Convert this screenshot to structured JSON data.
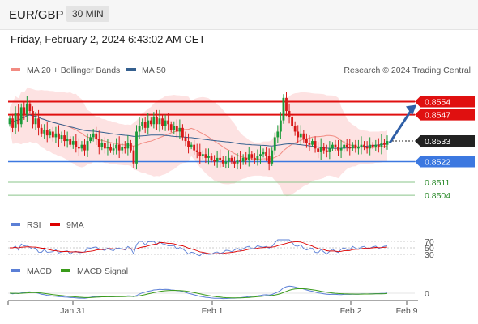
{
  "header": {
    "symbol": "EUR/GBP",
    "timeframe": "30 MIN"
  },
  "date_line": "Friday, February 2, 2024 6:43:02 AM CET",
  "legend_main": [
    {
      "label": "MA 20 + Bollinger Bands",
      "color": "#f28b82"
    },
    {
      "label": "MA 50",
      "color": "#35608f"
    }
  ],
  "credit": "Research © 2024 Trading Central",
  "legend_rsi": [
    {
      "label": "RSI",
      "color": "#5b7fd6"
    },
    {
      "label": "9MA",
      "color": "#dd0000"
    }
  ],
  "legend_macd": [
    {
      "label": "MACD",
      "color": "#5b7fd6"
    },
    {
      "label": "MACD Signal",
      "color": "#3a9b1a"
    }
  ],
  "colors": {
    "up": "#1a9b3a",
    "down": "#d81818",
    "resistance": "#e01010",
    "support": "#3c78e0",
    "target": "#8ac48a",
    "arrow": "#2f5fa7",
    "band": "#fde2e2"
  },
  "chart_data": [
    {
      "type": "candlestick",
      "ylim": [
        0.8495,
        0.8565
      ],
      "x_labels": [
        "Jan 31",
        "Feb 1",
        "Feb 2",
        "Feb 9"
      ],
      "last_price": 0.8533,
      "levels": [
        {
          "value": 0.8554,
          "label": "0.8554",
          "kind": "resistance"
        },
        {
          "value": 0.8547,
          "label": "0.8547",
          "kind": "resistance"
        },
        {
          "value": 0.8533,
          "label": "0.8533",
          "kind": "current"
        },
        {
          "value": 0.8522,
          "label": "0.8522",
          "kind": "support"
        },
        {
          "value": 0.8511,
          "label": "0.8511",
          "kind": "target"
        },
        {
          "value": 0.8504,
          "label": "0.8504",
          "kind": "target"
        }
      ],
      "close": [
        0.8545,
        0.854,
        0.8548,
        0.8542,
        0.8551,
        0.8547,
        0.8553,
        0.8549,
        0.8542,
        0.8545,
        0.854,
        0.8537,
        0.8539,
        0.8536,
        0.8538,
        0.8535,
        0.8537,
        0.8534,
        0.8536,
        0.8533,
        0.8534,
        0.8531,
        0.8533,
        0.853,
        0.8529,
        0.8531,
        0.8528,
        0.8533,
        0.8535,
        0.8537,
        0.8534,
        0.853,
        0.8532,
        0.8529,
        0.853,
        0.8528,
        0.8529,
        0.8531,
        0.8528,
        0.853,
        0.8529,
        0.8532,
        0.8528,
        0.8521,
        0.8538,
        0.8541,
        0.8543,
        0.854,
        0.8544,
        0.8542,
        0.8546,
        0.8542,
        0.8545,
        0.8541,
        0.8544,
        0.8542,
        0.8539,
        0.8541,
        0.8538,
        0.854,
        0.8535,
        0.8533,
        0.853,
        0.8531,
        0.8528,
        0.8527,
        0.8525,
        0.8526,
        0.8524,
        0.8525,
        0.8523,
        0.8522,
        0.8524,
        0.8523,
        0.8521,
        0.8522,
        0.8524,
        0.8522,
        0.8521,
        0.8523,
        0.8522,
        0.8524,
        0.8523,
        0.8526,
        0.8524,
        0.8523,
        0.8525,
        0.8526,
        0.8527,
        0.8525,
        0.8521,
        0.8528,
        0.8535,
        0.8538,
        0.8544,
        0.8556,
        0.8549,
        0.8546,
        0.8541,
        0.8538,
        0.8535,
        0.8537,
        0.8534,
        0.8532,
        0.8531,
        0.8533,
        0.8529,
        0.8527,
        0.853,
        0.8528,
        0.8527,
        0.8529,
        0.8531,
        0.853,
        0.8528,
        0.8529,
        0.8531,
        0.853,
        0.8529,
        0.8531,
        0.8529,
        0.853,
        0.8531,
        0.853,
        0.8529,
        0.8531,
        0.853,
        0.8531,
        0.853,
        0.8532,
        0.8531,
        0.8533
      ]
    },
    {
      "type": "line",
      "name": "RSI",
      "ticks": [
        70,
        50,
        30
      ]
    },
    {
      "type": "line",
      "name": "MACD",
      "ticks": [
        0
      ]
    }
  ]
}
